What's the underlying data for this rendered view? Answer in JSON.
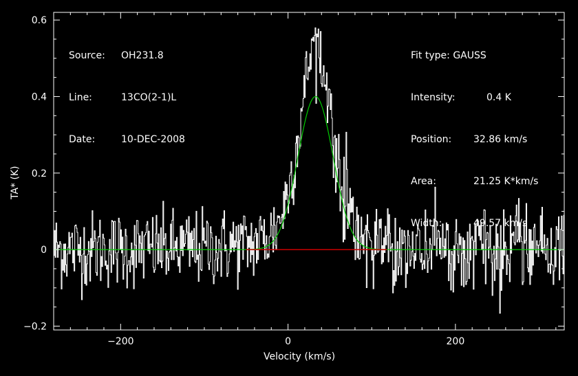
{
  "header_left": [
    {
      "key": "Source:",
      "value": "OH231.8"
    },
    {
      "key": "Line:",
      "value": "13CO(2-1)L"
    },
    {
      "key": "Date:",
      "value": "10-DEC-2008"
    }
  ],
  "header_right": [
    {
      "key": "Fit type:",
      "value": "GAUSS"
    },
    {
      "key": "Intensity:",
      "value": "0.4 K"
    },
    {
      "key": "Position:",
      "value": "32.86 km/s"
    },
    {
      "key": "Area:",
      "value": "21.25 K*km/s"
    },
    {
      "key": "Width:",
      "value": "49.57 km/s"
    }
  ],
  "colors": {
    "background": "#000000",
    "spectrum": "#ffffff",
    "gaussian_fit": "#00cc00",
    "baseline_window": "#cc0000",
    "axes": "#ffffff"
  },
  "chart_data": {
    "type": "line",
    "xlabel": "Velocity (km/s)",
    "ylabel": "TA* (K)",
    "xlim": [
      -280,
      330
    ],
    "ylim": [
      -0.21,
      0.62
    ],
    "xticks": [
      -200,
      0,
      200
    ],
    "xtick_labels": [
      "−200",
      "0",
      "200"
    ],
    "yticks": [
      -0.2,
      0,
      0.2,
      0.4,
      0.6
    ],
    "ytick_labels": [
      "−0.2",
      "0",
      "0.2",
      "0.4",
      "0.6"
    ],
    "grid": false,
    "series": [
      {
        "kind": "spectrum",
        "noise_rms": 0.05,
        "peak_velocity": 35,
        "peak_max": 0.58,
        "profile": "gaussian-like emission with broad wings, centered near 33 km/s"
      },
      {
        "kind": "gaussian_fit",
        "amplitude": 0.4,
        "center": 32.86,
        "fwhm": 49.57
      },
      {
        "kind": "baseline_segment",
        "x": [
          -50,
          118
        ],
        "y": [
          0,
          0
        ]
      }
    ]
  }
}
